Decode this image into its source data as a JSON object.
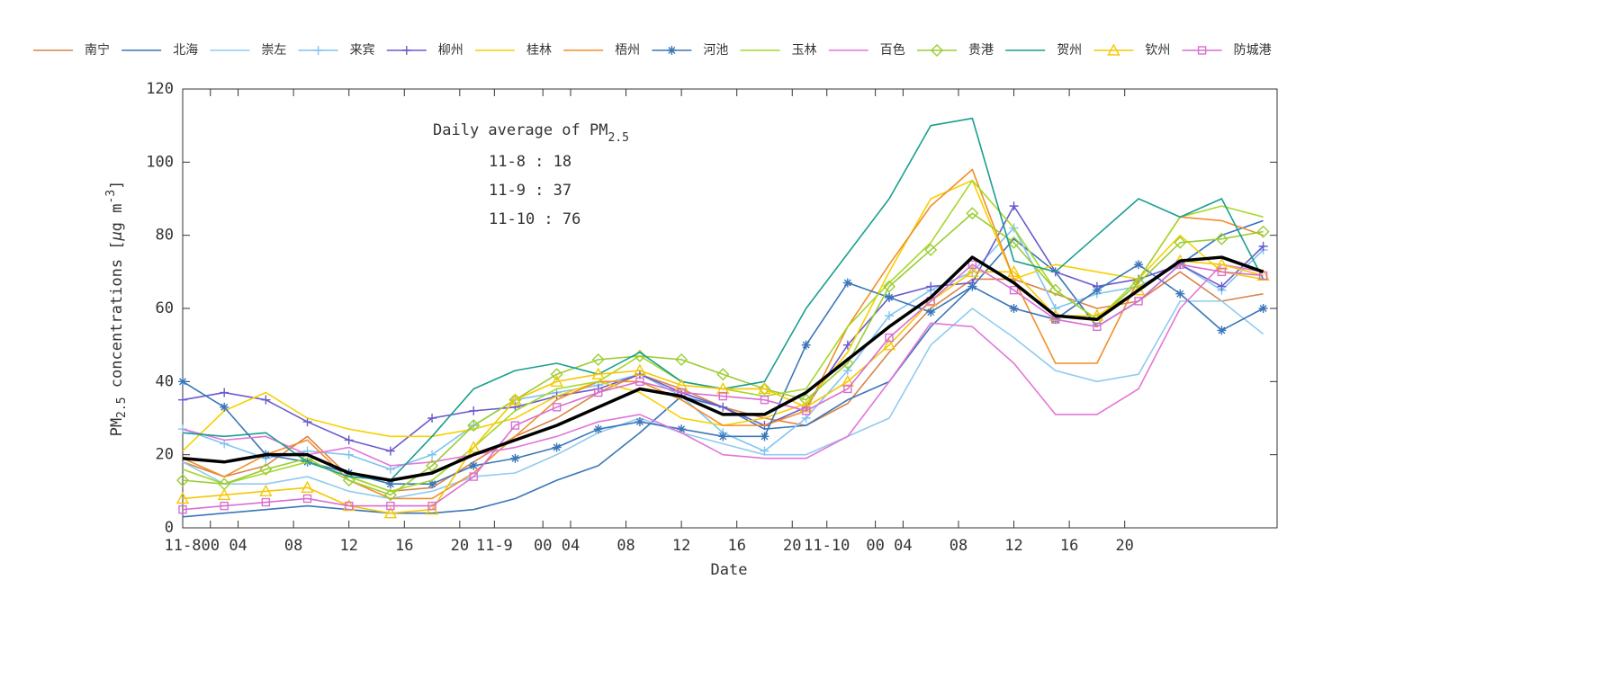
{
  "chart_data": {
    "type": "line",
    "x_label": "Date",
    "y_label": {
      "main": "PM",
      "sub": "2.5",
      "rest": " concentrations [",
      "mu": "μ",
      "unit": "g m",
      "sup": "-3",
      "end": "]"
    },
    "annotation": {
      "title": "Daily average of PM",
      "sub": "2.5",
      "lines": [
        "11-8 : 18",
        "11-9 : 37",
        "11-10 : 76"
      ]
    },
    "xlim": [
      0,
      79
    ],
    "ylim": [
      0,
      120
    ],
    "xticks": [
      {
        "value": 0,
        "label": "11-8"
      },
      {
        "value": 2,
        "label": "00"
      },
      {
        "value": 4,
        "label": "04"
      },
      {
        "value": 8,
        "label": "08"
      },
      12,
      16,
      20,
      {
        "value": 22.5,
        "label": "11-9"
      },
      {
        "value": 26,
        "label": "00"
      },
      {
        "value": 28,
        "label": "04"
      },
      {
        "value": 32,
        "label": "08"
      },
      {
        "value": 36,
        "label": "12"
      },
      {
        "value": 40,
        "label": "16"
      },
      {
        "value": 44,
        "label": "20"
      },
      {
        "value": 46.5,
        "label": "11-10"
      },
      {
        "value": 50,
        "label": "00"
      },
      {
        "value": 52,
        "label": "04"
      },
      {
        "value": 56,
        "label": "08"
      },
      {
        "value": 60,
        "label": "12"
      },
      {
        "value": 64,
        "label": "16"
      },
      {
        "value": 68,
        "label": "20"
      }
    ],
    "yticks": [
      0,
      20,
      40,
      60,
      80,
      100,
      120
    ],
    "x": [
      0,
      3,
      6,
      9,
      12,
      15,
      18,
      21,
      24,
      27,
      30,
      33,
      36,
      39,
      42,
      45,
      48,
      51,
      54,
      57,
      60,
      63,
      66,
      69,
      72,
      75,
      78
    ],
    "series": [
      {
        "name": "南宁",
        "color": "#d9844a",
        "marker": "none",
        "values": [
          18,
          14,
          17,
          25,
          14,
          10,
          11,
          18,
          25,
          30,
          37,
          42,
          38,
          33,
          30,
          28,
          34,
          48,
          60,
          68,
          68,
          64,
          60,
          62,
          70,
          62,
          64
        ]
      },
      {
        "name": "北海",
        "color": "#3a76b8",
        "marker": "none",
        "values": [
          3,
          4,
          5,
          6,
          5,
          4,
          4,
          5,
          8,
          13,
          17,
          26,
          36,
          33,
          27,
          28,
          35,
          40,
          55,
          66,
          79,
          70,
          55,
          62,
          72,
          80,
          84
        ]
      },
      {
        "name": "崇左",
        "color": "#8fcbf0",
        "marker": "none",
        "values": [
          18,
          12,
          12,
          14,
          10,
          8,
          10,
          14,
          15,
          20,
          26,
          30,
          26,
          23,
          20,
          20,
          25,
          30,
          50,
          60,
          52,
          43,
          40,
          42,
          62,
          62,
          53
        ]
      },
      {
        "name": "来宾",
        "color": "#80c4f0",
        "marker": "plus",
        "values": [
          27,
          23,
          19,
          21,
          20,
          16,
          20,
          28,
          35,
          37,
          39,
          42,
          36,
          26,
          21,
          30,
          43,
          58,
          65,
          70,
          82,
          60,
          64,
          66,
          72,
          65,
          76
        ]
      },
      {
        "name": "柳州",
        "color": "#6a5acd",
        "marker": "plus",
        "values": [
          35,
          37,
          35,
          29,
          24,
          21,
          30,
          32,
          33,
          36,
          38,
          42,
          37,
          33,
          28,
          33,
          50,
          63,
          66,
          67,
          88,
          70,
          66,
          68,
          72,
          66,
          77
        ]
      },
      {
        "name": "桂林",
        "color": "#f7d000",
        "marker": "none",
        "values": [
          21,
          32,
          37,
          30,
          27,
          25,
          25,
          27,
          30,
          36,
          40,
          37,
          30,
          28,
          30,
          34,
          48,
          70,
          90,
          95,
          68,
          72,
          70,
          68,
          80,
          70,
          68
        ]
      },
      {
        "name": "梧州",
        "color": "#f28e2b",
        "marker": "none",
        "values": [
          19,
          14,
          20,
          24,
          13,
          8,
          8,
          15,
          25,
          35,
          40,
          40,
          35,
          28,
          28,
          32,
          55,
          72,
          88,
          98,
          68,
          45,
          45,
          68,
          85,
          84,
          80
        ]
      },
      {
        "name": "河池",
        "color": "#3a76b8",
        "marker": "star",
        "values": [
          40,
          33,
          20,
          18,
          15,
          12,
          12,
          17,
          19,
          22,
          27,
          29,
          27,
          25,
          25,
          50,
          67,
          63,
          59,
          66,
          60,
          57,
          65,
          72,
          64,
          54,
          60
        ]
      },
      {
        "name": "玉林",
        "color": "#a6d82a",
        "marker": "none",
        "values": [
          16,
          12,
          15,
          18,
          14,
          10,
          13,
          22,
          32,
          38,
          40,
          47,
          40,
          38,
          36,
          38,
          55,
          67,
          78,
          95,
          82,
          65,
          57,
          68,
          85,
          88,
          85
        ]
      },
      {
        "name": "百色",
        "color": "#e276d8",
        "marker": "none",
        "values": [
          27,
          24,
          25,
          20,
          22,
          17,
          18,
          20,
          22,
          25,
          29,
          31,
          26,
          20,
          19,
          19,
          25,
          40,
          56,
          55,
          45,
          31,
          31,
          38,
          60,
          72,
          70
        ]
      },
      {
        "name": "贵港",
        "color": "#9acd32",
        "marker": "diamond",
        "values": [
          13,
          12,
          16,
          19,
          13,
          9,
          17,
          28,
          35,
          42,
          46,
          47,
          46,
          42,
          38,
          35,
          45,
          66,
          76,
          86,
          78,
          65,
          57,
          67,
          78,
          79,
          81
        ]
      },
      {
        "name": "贺州",
        "color": "#1a9e8f",
        "marker": "none",
        "values": [
          26,
          25,
          26,
          18,
          14,
          13,
          25,
          38,
          43,
          45,
          42,
          48,
          40,
          38,
          40,
          60,
          75,
          90,
          110,
          112,
          73,
          70,
          80,
          90,
          85,
          90,
          68
        ]
      },
      {
        "name": "钦州",
        "color": "#f5c800",
        "marker": "triangle",
        "values": [
          8,
          9,
          10,
          11,
          6,
          4,
          5,
          22,
          35,
          40,
          42,
          43,
          39,
          38,
          38,
          33,
          40,
          50,
          62,
          70,
          70,
          58,
          58,
          65,
          73,
          72,
          69
        ]
      },
      {
        "name": "防城港",
        "color": "#d96fd1",
        "marker": "square",
        "values": [
          5,
          6,
          7,
          8,
          6,
          6,
          6,
          14,
          28,
          33,
          37,
          40,
          37,
          36,
          35,
          32,
          38,
          52,
          62,
          72,
          65,
          57,
          55,
          62,
          72,
          70,
          69
        ]
      },
      {
        "color": "#000000",
        "marker": "none",
        "width": 3.5,
        "values": [
          19,
          18,
          20,
          20,
          15,
          13,
          15,
          20,
          24,
          28,
          33,
          38,
          36,
          31,
          31,
          37,
          46,
          55,
          63,
          74,
          67,
          58,
          57,
          65,
          73,
          74,
          70
        ]
      }
    ]
  }
}
